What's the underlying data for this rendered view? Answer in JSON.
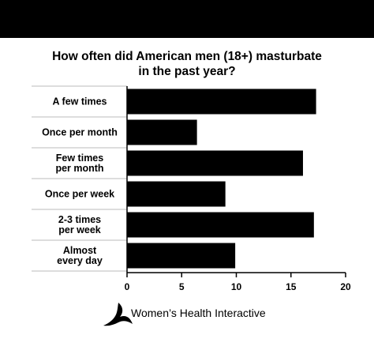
{
  "chart_data": {
    "type": "barh",
    "title": "How often did American men (18+) masturbate\nin the past year?",
    "categories": [
      "A few times",
      "Once per month",
      "Few times\nper month",
      "Once per week",
      "2-3 times\nper week",
      "Almost\nevery day"
    ],
    "values": [
      17.3,
      6.4,
      16.1,
      9.0,
      17.1,
      9.9
    ],
    "color": "#000000",
    "xlim": [
      0,
      20
    ],
    "xticks": [
      0,
      5,
      10,
      15,
      20
    ],
    "brand": "Women’s Health Interactive"
  }
}
